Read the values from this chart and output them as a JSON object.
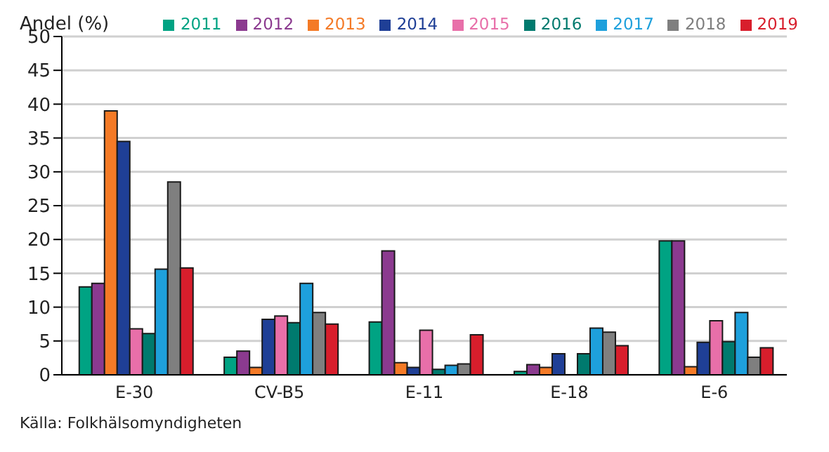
{
  "chart_data": {
    "type": "bar",
    "ylabel": "Andel (%)",
    "categories": [
      "E-30",
      "CV-B5",
      "E-11",
      "E-18",
      "E-6"
    ],
    "series": [
      {
        "name": "2011",
        "color": "#00a383",
        "values": [
          13,
          2.6,
          7.8,
          0.5,
          19.8
        ]
      },
      {
        "name": "2012",
        "color": "#8b3a8f",
        "values": [
          13.5,
          3.5,
          18.3,
          1.5,
          19.8
        ]
      },
      {
        "name": "2013",
        "color": "#f47a26",
        "values": [
          39,
          1.1,
          1.8,
          1.1,
          1.2
        ]
      },
      {
        "name": "2014",
        "color": "#1f3f96",
        "values": [
          34.5,
          8.2,
          1.1,
          3.1,
          4.8
        ]
      },
      {
        "name": "2015",
        "color": "#e86fa9",
        "values": [
          6.8,
          8.7,
          6.6,
          null,
          8.0
        ]
      },
      {
        "name": "2016",
        "color": "#007a6e",
        "values": [
          6.1,
          7.7,
          0.8,
          3.1,
          4.9
        ]
      },
      {
        "name": "2017",
        "color": "#1ea0dc",
        "values": [
          15.6,
          13.5,
          1.4,
          6.9,
          9.2
        ]
      },
      {
        "name": "2018",
        "color": "#7f7f7f",
        "values": [
          28.5,
          9.2,
          1.6,
          6.3,
          2.6
        ]
      },
      {
        "name": "2019",
        "color": "#d81e2c",
        "values": [
          15.8,
          7.5,
          5.9,
          4.3,
          4.0
        ]
      }
    ],
    "ylim": [
      0,
      50
    ],
    "yticks": [
      0,
      5,
      10,
      15,
      20,
      25,
      30,
      35,
      40,
      45,
      50
    ],
    "grid": "y",
    "legend": "top right",
    "annotations": [
      "Källa: Folkhälsomyndigheten"
    ]
  }
}
